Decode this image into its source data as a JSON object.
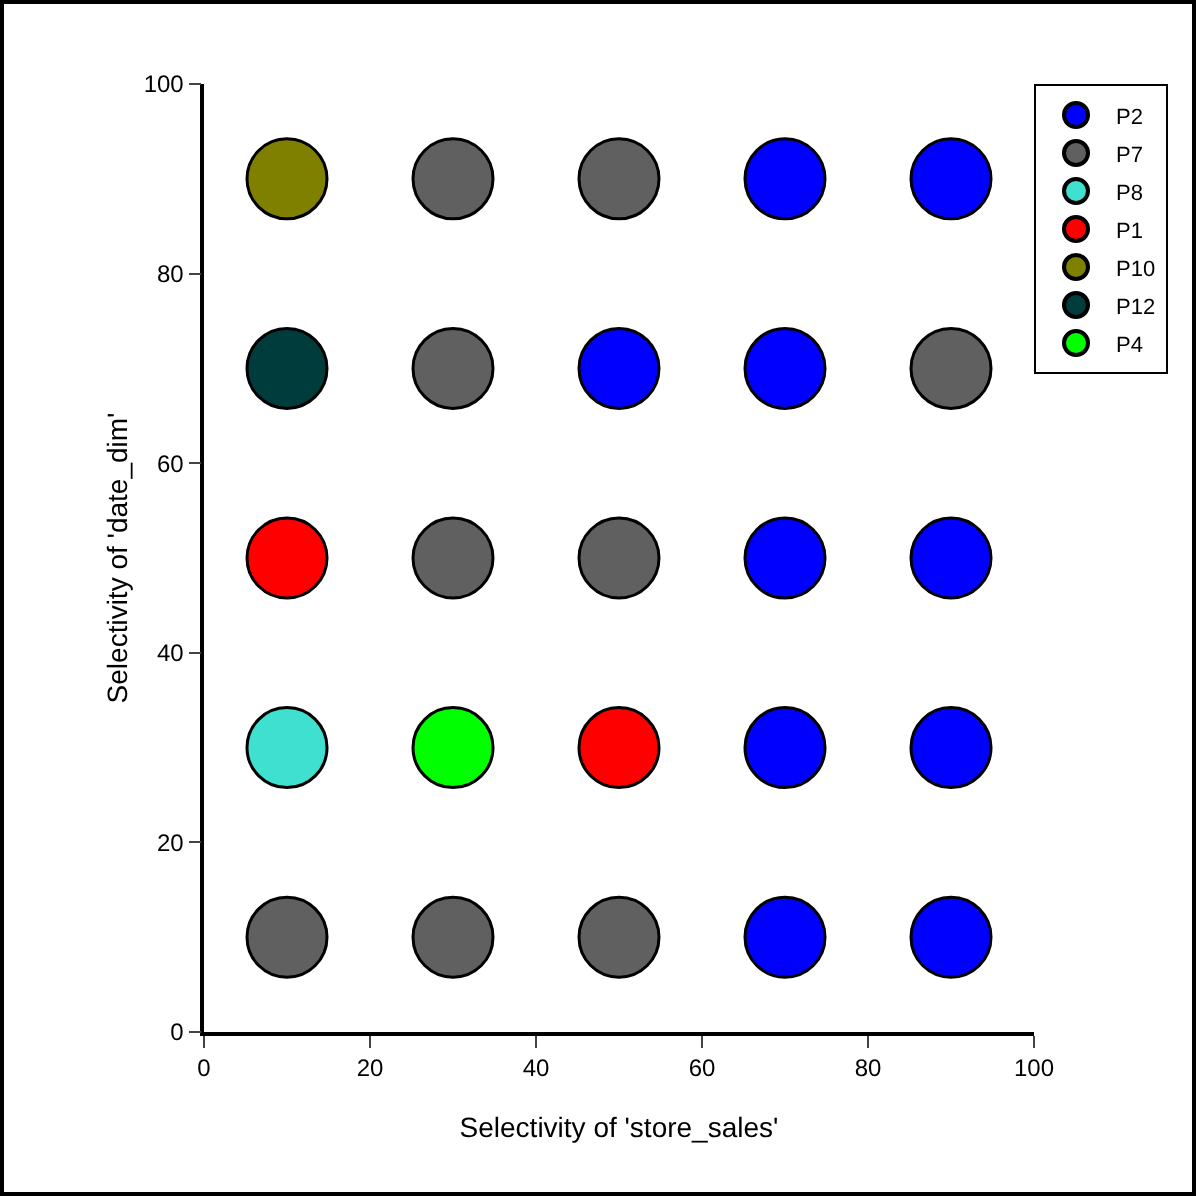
{
  "chart_data": {
    "type": "scatter",
    "xlabel": "Selectivity of 'store_sales'",
    "ylabel": "Selectivity of 'date_dim'",
    "xlim": [
      0,
      100
    ],
    "ylim": [
      0,
      100
    ],
    "xticks": [
      0,
      20,
      40,
      60,
      80,
      100
    ],
    "yticks": [
      0,
      20,
      40,
      60,
      80,
      100
    ],
    "grid": false,
    "legend": "top right",
    "marker": "circle",
    "series": [
      {
        "name": "P2",
        "color": "#0000ff",
        "x": [
          70,
          90,
          50,
          70,
          70,
          90,
          70,
          90,
          70,
          90
        ],
        "values": [
          90,
          90,
          70,
          70,
          50,
          50,
          30,
          30,
          10,
          10
        ]
      },
      {
        "name": "P7",
        "color": "#606060",
        "x": [
          30,
          50,
          30,
          90,
          30,
          50,
          10,
          30,
          50
        ],
        "values": [
          90,
          90,
          70,
          70,
          50,
          50,
          10,
          10,
          10
        ]
      },
      {
        "name": "P8",
        "color": "#40e0d0",
        "x": [
          10
        ],
        "values": [
          30
        ]
      },
      {
        "name": "P1",
        "color": "#ff0000",
        "x": [
          10,
          50
        ],
        "values": [
          50,
          30
        ]
      },
      {
        "name": "P10",
        "color": "#808000",
        "x": [
          10
        ],
        "values": [
          90
        ]
      },
      {
        "name": "P12",
        "color": "#003c3c",
        "x": [
          10
        ],
        "values": [
          70
        ]
      },
      {
        "name": "P4",
        "color": "#00ff00",
        "x": [
          30
        ],
        "values": [
          30
        ]
      }
    ]
  }
}
